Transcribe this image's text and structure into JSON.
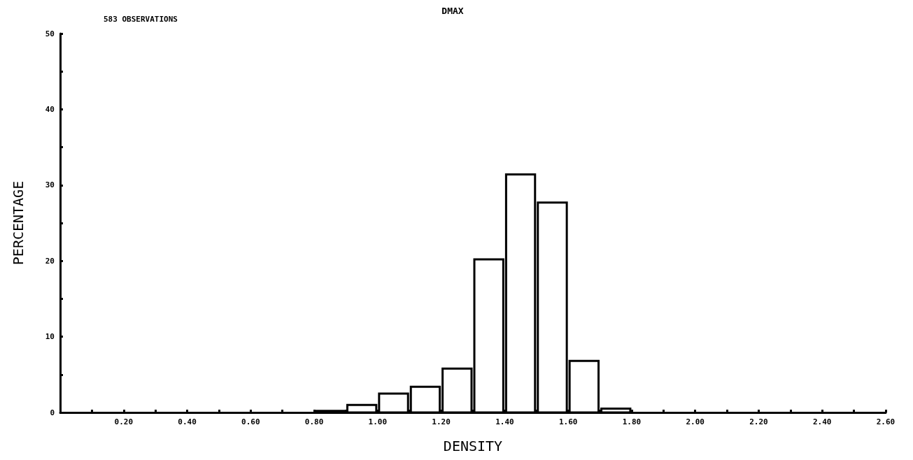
{
  "chart_data": {
    "type": "histogram",
    "title": "DMAX",
    "xlabel": "DENSITY",
    "ylabel": "PERCENTAGE",
    "annotations": [
      "583 OBSERVATIONS"
    ],
    "bins": [
      0.8,
      0.9,
      1.0,
      1.1,
      1.2,
      1.3,
      1.4,
      1.5,
      1.6,
      1.7,
      1.8
    ],
    "values": [
      0.2,
      1.0,
      2.5,
      3.4,
      5.8,
      20.2,
      31.4,
      27.7,
      6.8,
      0.5
    ],
    "color": "#ffffff",
    "xlim": [
      0,
      2.6
    ],
    "xticks": [
      {
        "value": 0.1,
        "label": null
      },
      {
        "value": 0.2,
        "label": "0.20"
      },
      {
        "value": 0.3,
        "label": null
      },
      {
        "value": 0.4,
        "label": "0.40"
      },
      {
        "value": 0.5,
        "label": null
      },
      {
        "value": 0.6,
        "label": "0.60"
      },
      {
        "value": 0.7,
        "label": null
      },
      {
        "value": 0.8,
        "label": "0.80"
      },
      {
        "value": 0.9,
        "label": null
      },
      {
        "value": 1.0,
        "label": "1.00"
      },
      {
        "value": 1.1,
        "label": null
      },
      {
        "value": 1.2,
        "label": "1.20"
      },
      {
        "value": 1.3,
        "label": null
      },
      {
        "value": 1.4,
        "label": "1.40"
      },
      {
        "value": 1.5,
        "label": null
      },
      {
        "value": 1.6,
        "label": "1.60"
      },
      {
        "value": 1.7,
        "label": null
      },
      {
        "value": 1.8,
        "label": "1.80"
      },
      {
        "value": 1.9,
        "label": null
      },
      {
        "value": 2.0,
        "label": "2.00"
      },
      {
        "value": 2.1,
        "label": null
      },
      {
        "value": 2.2,
        "label": "2.20"
      },
      {
        "value": 2.3,
        "label": null
      },
      {
        "value": 2.4,
        "label": "2.40"
      },
      {
        "value": 2.5,
        "label": null
      },
      {
        "value": 2.6,
        "label": "2.60"
      }
    ],
    "ylim": [
      0,
      50
    ],
    "yticks": [
      0,
      {
        "value": 5,
        "label": null
      },
      10,
      {
        "value": 15,
        "label": null
      },
      20,
      {
        "value": 25,
        "label": null
      },
      30,
      {
        "value": 35,
        "label": null
      },
      40,
      {
        "value": 45,
        "label": null
      },
      50
    ],
    "grid": false
  }
}
